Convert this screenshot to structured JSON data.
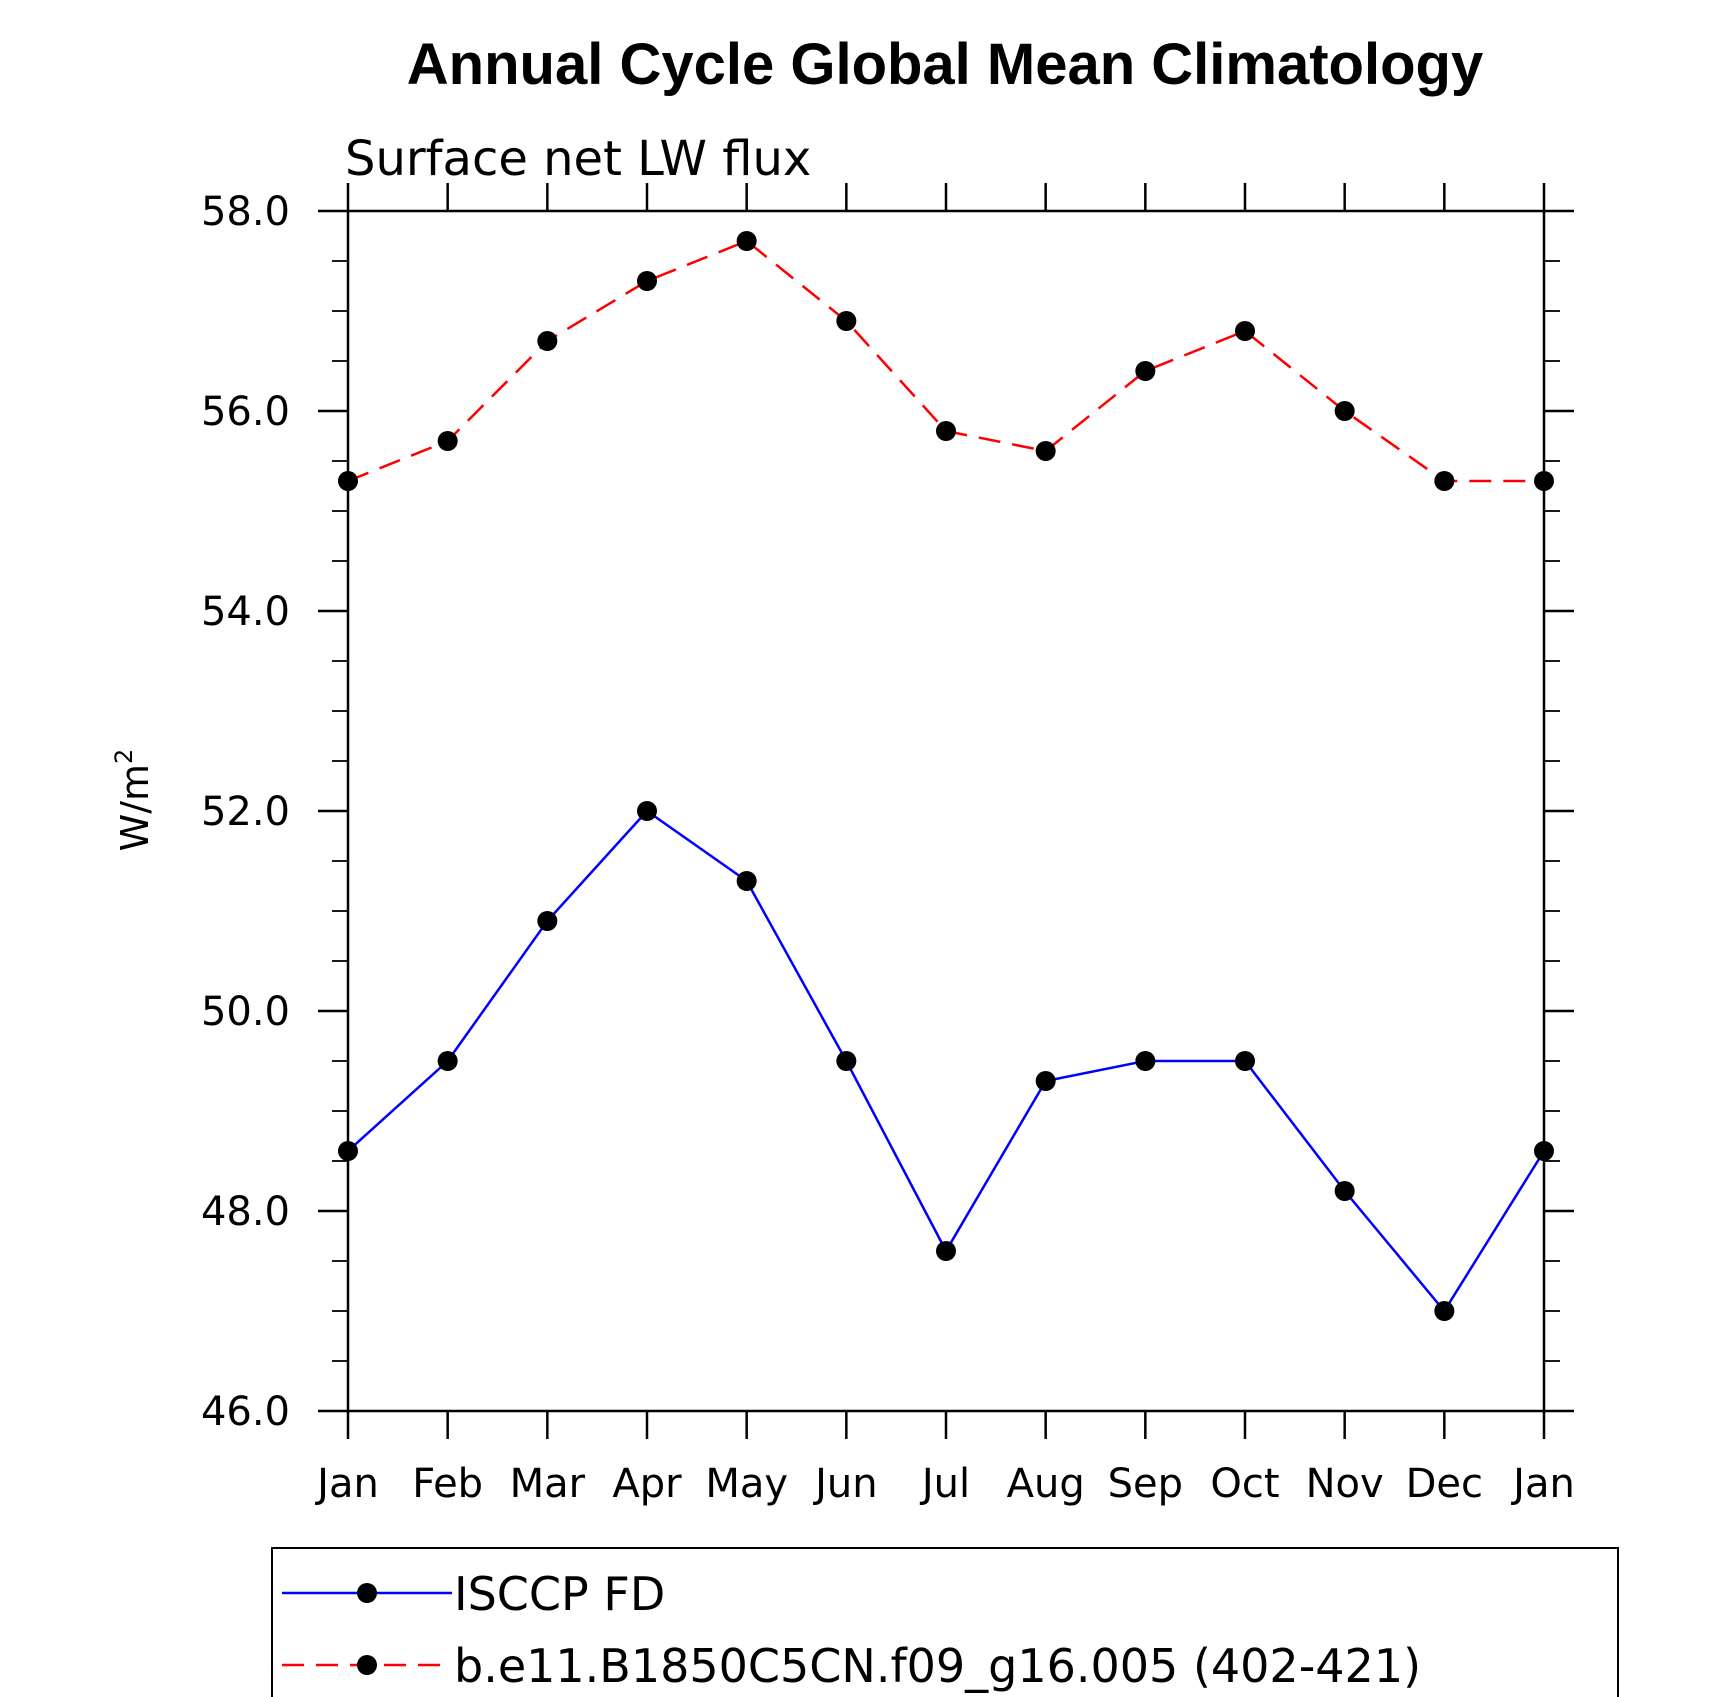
{
  "chart_data": {
    "type": "line",
    "title": "Annual Cycle Global Mean Climatology",
    "subtitle": "Surface net LW flux",
    "ylabel_base": "W/m",
    "ylabel_sup": "2",
    "categories": [
      "Jan",
      "Feb",
      "Mar",
      "Apr",
      "May",
      "Jun",
      "Jul",
      "Aug",
      "Sep",
      "Oct",
      "Nov",
      "Dec",
      "Jan"
    ],
    "ylim": [
      46.0,
      58.0
    ],
    "yticks": [
      "46.0",
      "48.0",
      "50.0",
      "52.0",
      "54.0",
      "56.0",
      "58.0"
    ],
    "grid": false,
    "legend_position": "bottom",
    "series": [
      {
        "name": "ISCCP FD",
        "color": "#0000ff",
        "dash": "solid",
        "values": [
          48.6,
          49.5,
          50.9,
          52.0,
          51.3,
          49.5,
          47.6,
          49.3,
          49.5,
          49.5,
          48.2,
          47.0,
          48.6
        ]
      },
      {
        "name": "b.e11.B1850C5CN.f09_g16.005 (402-421)",
        "color": "#ff0000",
        "dash": "dashed",
        "values": [
          55.3,
          55.7,
          56.7,
          57.3,
          57.7,
          56.9,
          55.8,
          55.6,
          56.4,
          56.8,
          56.0,
          55.3,
          55.3
        ]
      }
    ]
  }
}
